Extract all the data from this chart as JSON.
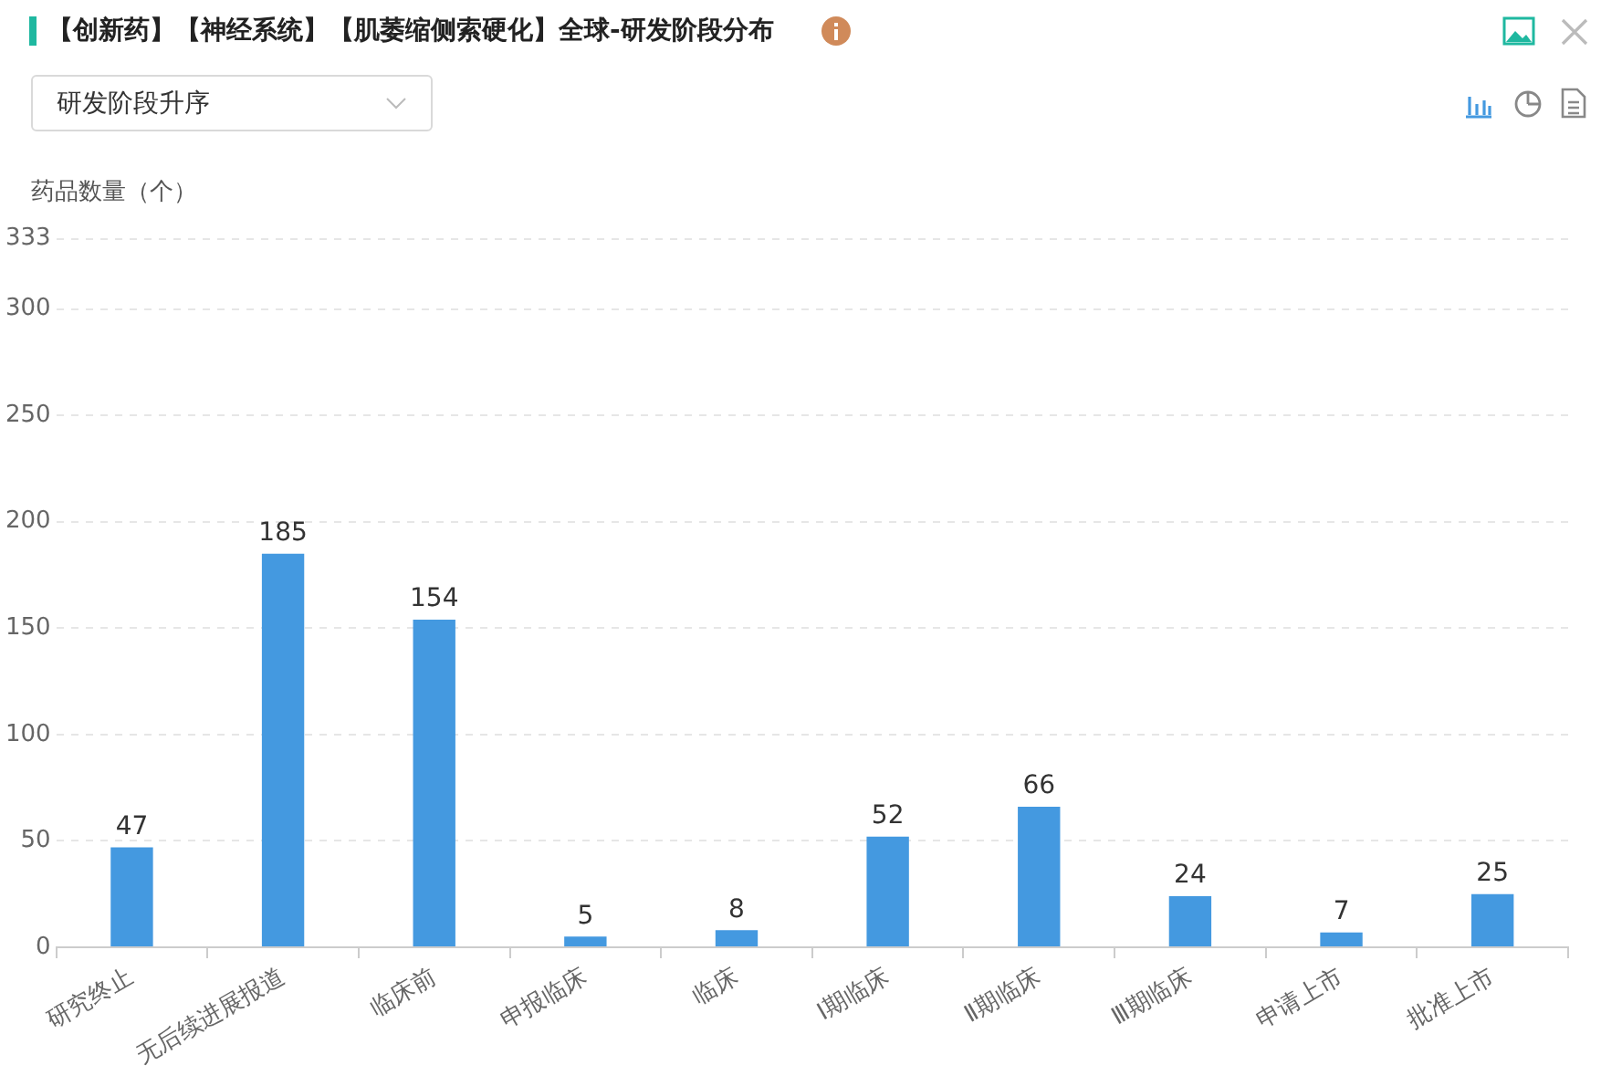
{
  "chart_data": {
    "type": "bar",
    "title": "【创新药】【神经系统】【肌萎缩侧索硬化】全球-研发阶段分布",
    "annotations": [
      "研发阶段升序"
    ],
    "ylabel": "药品数量（个）",
    "categories": [
      "研究终止",
      "无后续进展报道",
      "临床前",
      "申报临床",
      "临床",
      "Ⅰ期临床",
      "Ⅱ期临床",
      "Ⅲ期临床",
      "申请上市",
      "批准上市"
    ],
    "values": [
      47,
      185,
      154,
      5,
      8,
      52,
      66,
      24,
      7,
      25
    ],
    "color": "#4499e0",
    "ylim": [
      0,
      333
    ],
    "yticks": [
      0,
      50,
      100,
      150,
      200,
      250,
      300,
      333
    ],
    "grid": "y",
    "data_labels": true
  }
}
